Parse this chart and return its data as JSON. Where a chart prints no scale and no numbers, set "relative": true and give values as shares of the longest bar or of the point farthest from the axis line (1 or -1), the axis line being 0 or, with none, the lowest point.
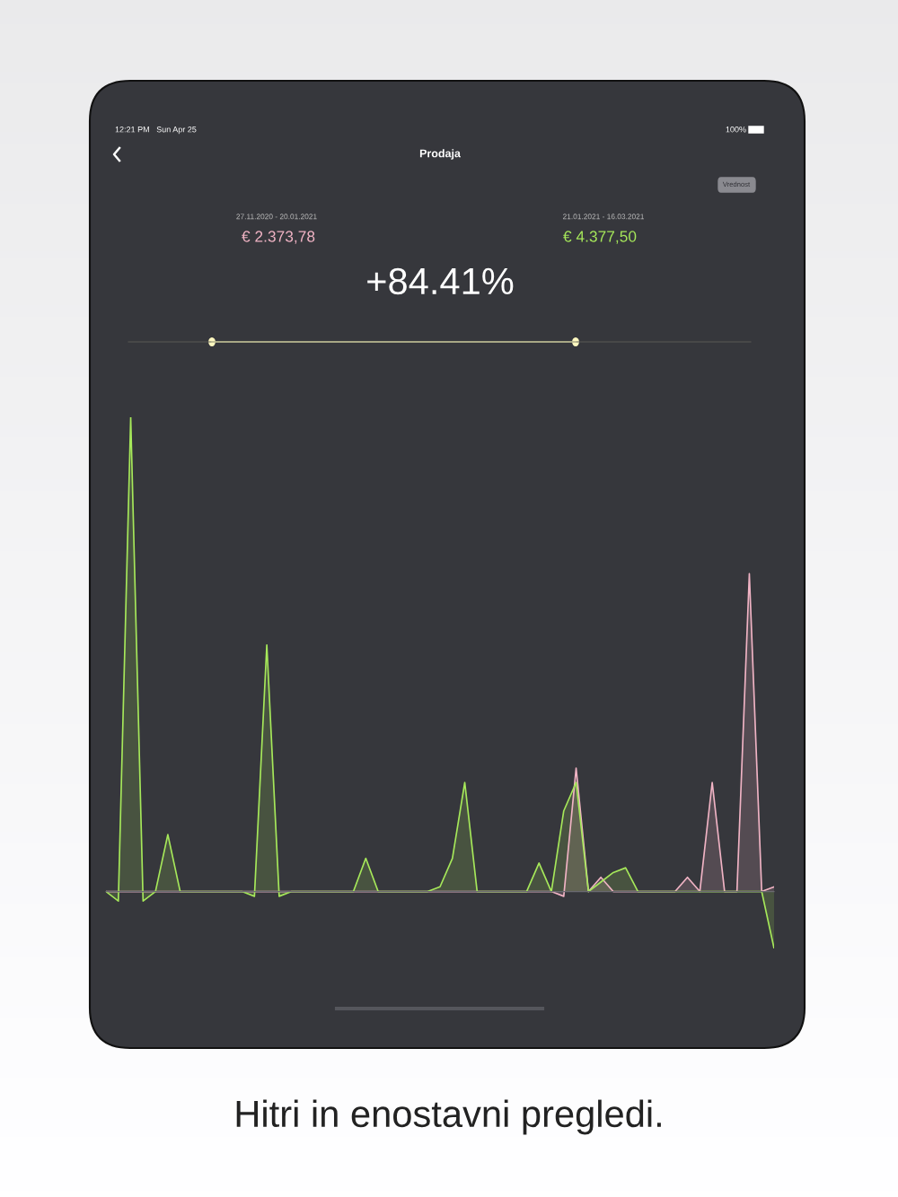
{
  "chart_data": {
    "type": "area",
    "relative": true,
    "title": "Prodaja",
    "annotations": [
      "12:21 PM   Sun Apr 25",
      "100%",
      "Vrednost",
      "27.11.2020 - 20.01.2021",
      "€ 2.373,78",
      "21.01.2021 - 16.03.2021",
      "€ 4.377,50",
      "+84.41%",
      "Hitri in enostavni pregledi."
    ],
    "categories": [
      null,
      null,
      null,
      null,
      null,
      null,
      null,
      null,
      null,
      null,
      null,
      null,
      null,
      null,
      null,
      null,
      null,
      null,
      null,
      null,
      null,
      null,
      null,
      null,
      null,
      null,
      null,
      null,
      null,
      null,
      null,
      null,
      null,
      null,
      null,
      null,
      null,
      null,
      null,
      null,
      null,
      null,
      null,
      null,
      null,
      null,
      null,
      null,
      null,
      null,
      null,
      null,
      null,
      null,
      null
    ],
    "series": [
      {
        "color": "#f0b3c4",
        "values": [
          0,
          0,
          0,
          0,
          0,
          0,
          0,
          0,
          0,
          0,
          0,
          0,
          0,
          0,
          0,
          0,
          0,
          0,
          0,
          0,
          0,
          0,
          0,
          0,
          0,
          0,
          0,
          0,
          0,
          0,
          0,
          0,
          0,
          0,
          0,
          0,
          0,
          -0.01,
          0.26,
          0,
          0.03,
          0,
          0,
          0,
          0,
          0,
          0,
          0.03,
          0,
          0.23,
          0,
          0,
          0.67,
          0,
          0.01
        ]
      },
      {
        "color": "#a6e85a",
        "values": [
          0,
          -0.02,
          1.0,
          -0.02,
          0,
          0.12,
          0,
          0,
          0,
          0,
          0,
          0,
          -0.01,
          0.52,
          -0.01,
          0,
          0,
          0,
          0,
          0,
          0,
          0.07,
          0,
          0,
          0,
          0,
          0,
          0.01,
          0.07,
          0.23,
          0,
          0,
          0,
          0,
          0,
          0.06,
          0,
          0.17,
          0.23,
          0,
          0.02,
          0.04,
          0.05,
          0,
          0,
          0,
          0,
          0,
          0,
          0,
          0,
          0,
          0,
          0,
          -0.12
        ]
      }
    ]
  }
}
